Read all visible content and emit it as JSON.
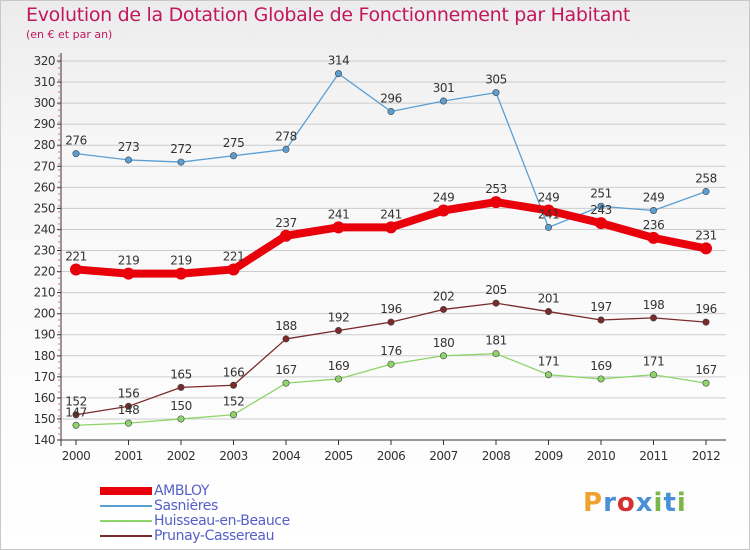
{
  "header": {
    "title": "Evolution de la Dotation Globale de Fonctionnement par Habitant",
    "subtitle": "(en € et par an)"
  },
  "logo": {
    "text": "Proxiti",
    "colors": [
      "#f0a22e",
      "#4a90d9",
      "#d62f2f",
      "#4a90d9",
      "#7ab648",
      "#4a90d9",
      "#7ab648"
    ]
  },
  "colors": {
    "title": "#c2185b",
    "axis": "#333333",
    "grid": "#cccccc",
    "legend_text": "#5560c6"
  },
  "chart_data": {
    "type": "line",
    "title": "Evolution de la Dotation Globale de Fonctionnement par Habitant",
    "subtitle": "(en € et par an)",
    "xlabel": "",
    "ylabel": "",
    "categories": [
      "2000",
      "2001",
      "2002",
      "2003",
      "2004",
      "2005",
      "2006",
      "2007",
      "2008",
      "2009",
      "2010",
      "2011",
      "2012"
    ],
    "ylim": [
      140,
      320
    ],
    "yticks": [
      140,
      150,
      160,
      170,
      180,
      190,
      200,
      210,
      220,
      230,
      240,
      250,
      260,
      270,
      280,
      290,
      300,
      310,
      320
    ],
    "grid": "horizontal",
    "legend_position": "bottom-left",
    "series": [
      {
        "name": "AMBLOY",
        "color": "#e8000b",
        "values": [
          221,
          219,
          219,
          221,
          237,
          241,
          241,
          249,
          253,
          249,
          243,
          236,
          231
        ]
      },
      {
        "name": "Sasnières",
        "color": "#5a9fd4",
        "values": [
          276,
          273,
          272,
          275,
          278,
          314,
          296,
          301,
          305,
          241,
          251,
          249,
          258
        ]
      },
      {
        "name": "Huisseau-en-Beauce",
        "color": "#8fd46a",
        "values": [
          147,
          148,
          150,
          152,
          167,
          169,
          176,
          180,
          181,
          171,
          169,
          171,
          167
        ]
      },
      {
        "name": "Prunay-Cassereau",
        "color": "#7a2a2a",
        "values": [
          152,
          156,
          165,
          166,
          188,
          192,
          196,
          202,
          205,
          201,
          197,
          198,
          196
        ]
      }
    ]
  }
}
